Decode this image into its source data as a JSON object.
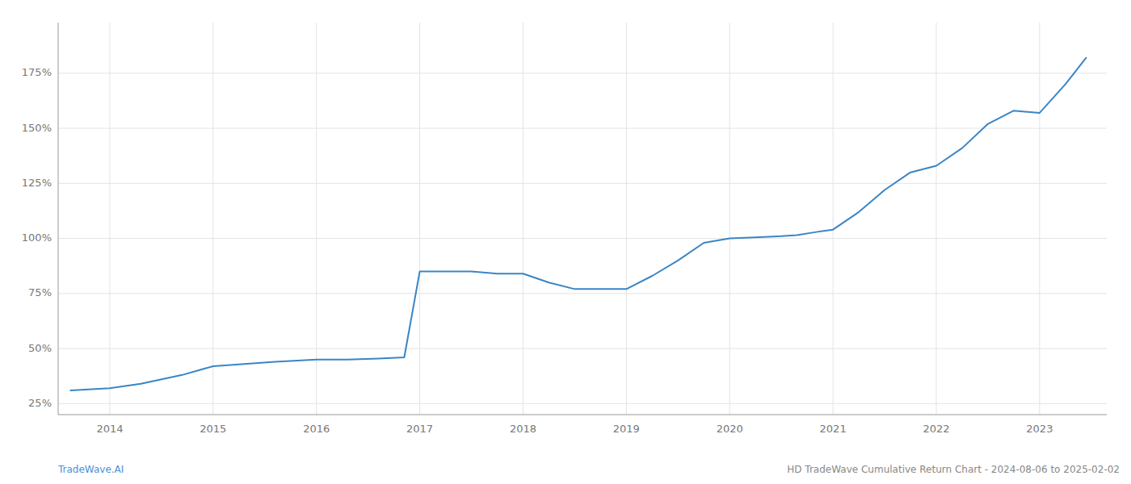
{
  "chart_data": {
    "type": "line",
    "x": [
      2013.62,
      2014.0,
      2014.3,
      2014.7,
      2015.0,
      2015.3,
      2015.6,
      2016.0,
      2016.3,
      2016.6,
      2016.85,
      2017.0,
      2017.25,
      2017.5,
      2017.75,
      2018.0,
      2018.25,
      2018.5,
      2018.75,
      2019.0,
      2019.25,
      2019.5,
      2019.75,
      2020.0,
      2020.25,
      2020.5,
      2020.65,
      2020.85,
      2021.0,
      2021.25,
      2021.5,
      2021.75,
      2022.0,
      2022.25,
      2022.5,
      2022.75,
      2023.0,
      2023.25,
      2023.45
    ],
    "values": [
      31,
      32,
      34,
      38,
      42,
      43,
      44,
      45,
      45,
      45.5,
      46,
      85,
      85,
      85,
      84,
      84,
      80,
      77,
      77,
      77,
      83,
      90,
      98,
      100,
      100.5,
      101,
      101.5,
      103,
      104,
      112,
      122,
      130,
      133,
      141,
      152,
      158,
      157,
      170,
      182
    ],
    "color": "#3a85c5",
    "xlim": [
      2013.5,
      2023.65
    ],
    "xticks": [
      2014,
      2015,
      2016,
      2017,
      2018,
      2019,
      2020,
      2021,
      2022,
      2023
    ],
    "ylim": [
      20,
      198
    ],
    "yticks": [
      {
        "value": 25,
        "label": "25%"
      },
      {
        "value": 50,
        "label": "50%"
      },
      {
        "value": 75,
        "label": "75%"
      },
      {
        "value": 100,
        "label": "100%"
      },
      {
        "value": 125,
        "label": "125%"
      },
      {
        "value": 150,
        "label": "150%"
      },
      {
        "value": 175,
        "label": "175%"
      }
    ],
    "grid": true,
    "annotations": [
      "TradeWave.AI",
      "HD TradeWave Cumulative Return Chart - 2024-08-06 to 2025-02-02"
    ]
  }
}
